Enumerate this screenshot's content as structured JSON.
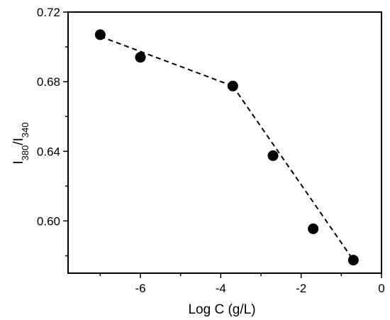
{
  "chart_data": {
    "type": "scatter",
    "xlabel": "Log C (g/L)",
    "ylabel": {
      "parts": [
        {
          "text": "I",
          "sub": false
        },
        {
          "text": "380",
          "sub": true
        },
        {
          "text": "/I",
          "sub": false
        },
        {
          "text": "340",
          "sub": true
        }
      ]
    },
    "xlim": [
      -7.8,
      0
    ],
    "ylim": [
      0.57,
      0.72
    ],
    "xticks": [
      -6,
      -4,
      -2,
      0
    ],
    "xtick_labels": [
      "-6",
      "-4",
      "-2",
      "0"
    ],
    "yticks": [
      0.6,
      0.64,
      0.68,
      0.72
    ],
    "ytick_labels": [
      "0.60",
      "0.64",
      "0.68",
      "0.72"
    ],
    "grid": false,
    "series": [
      {
        "x": [
          -7.0,
          -6.0,
          -3.7,
          -2.7,
          -1.7,
          -0.7
        ],
        "y": [
          0.707,
          0.694,
          0.6775,
          0.6375,
          0.5955,
          0.5775
        ],
        "marker": "circle",
        "color": "#000000"
      }
    ],
    "fit_lines": [
      {
        "style": "dashed",
        "color": "#000000",
        "x": [
          -7.0,
          -3.7
        ],
        "y": [
          0.706,
          0.6775
        ]
      },
      {
        "style": "dashed",
        "color": "#000000",
        "x": [
          -3.7,
          -0.7
        ],
        "y": [
          0.6775,
          0.5775
        ]
      }
    ]
  }
}
